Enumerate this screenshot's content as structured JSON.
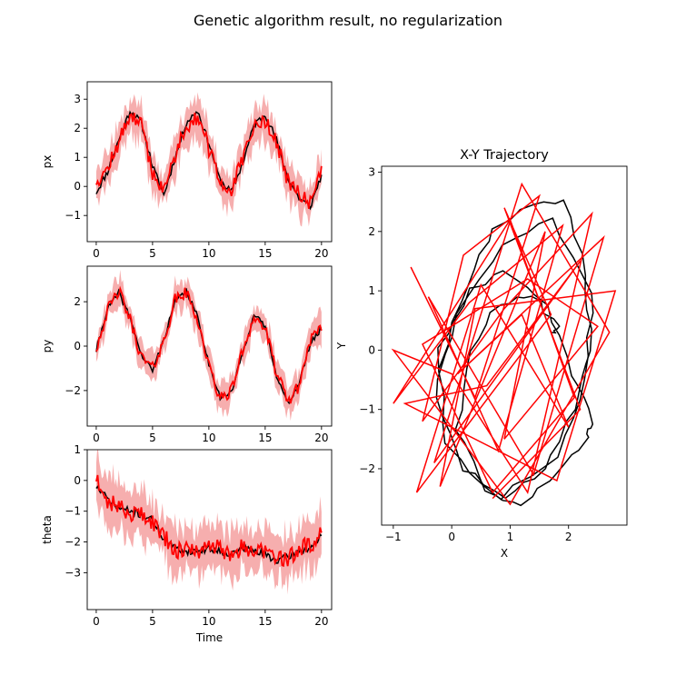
{
  "title": "Genetic algorithm result, no regularization",
  "colors": {
    "truth": "#000000",
    "estimate": "#ff0000",
    "band": "#f4a0a0"
  },
  "chart_data": [
    {
      "id": "px",
      "type": "line",
      "title": "",
      "xlabel": "",
      "ylabel": "px",
      "xlim": [
        -0.8,
        20.9
      ],
      "ylim": [
        -1.9,
        3.6
      ],
      "xticks": [
        0,
        5,
        10,
        15,
        20
      ],
      "yticks": [
        -1,
        0,
        1,
        2,
        3
      ],
      "x": [
        0,
        1,
        2,
        3,
        4,
        5,
        6,
        7,
        8,
        9,
        10,
        11,
        12,
        13,
        14,
        15,
        16,
        17,
        18,
        19,
        20
      ],
      "series": [
        {
          "role": "truth",
          "values": [
            -0.2,
            0.5,
            1.6,
            2.6,
            2.2,
            0.7,
            -0.3,
            1.0,
            2.2,
            2.6,
            1.5,
            0.2,
            -0.2,
            0.8,
            2.1,
            2.5,
            1.6,
            0.3,
            -0.4,
            -0.7,
            0.4
          ]
        },
        {
          "role": "estimate",
          "values": [
            0.2,
            0.6,
            1.5,
            2.5,
            2.1,
            0.5,
            -0.2,
            1.1,
            2.1,
            2.4,
            1.3,
            0.1,
            -0.1,
            0.9,
            2.0,
            2.3,
            1.5,
            0.2,
            -0.3,
            -0.6,
            0.7
          ]
        }
      ],
      "band_halfwidth": 0.6
    },
    {
      "id": "py",
      "type": "line",
      "title": "",
      "xlabel": "",
      "ylabel": "py",
      "xlim": [
        -0.8,
        20.9
      ],
      "ylim": [
        -3.6,
        3.6
      ],
      "xticks": [
        0,
        5,
        10,
        15,
        20
      ],
      "yticks": [
        -2,
        0,
        2
      ],
      "x": [
        0,
        1,
        2,
        3,
        4,
        5,
        6,
        7,
        8,
        9,
        10,
        11,
        12,
        13,
        14,
        15,
        16,
        17,
        18,
        19,
        20
      ],
      "series": [
        {
          "role": "truth",
          "values": [
            -0.2,
            1.7,
            2.4,
            1.3,
            -0.4,
            -1.1,
            0.3,
            2.0,
            2.5,
            1.3,
            -0.8,
            -2.3,
            -2.1,
            -0.3,
            1.4,
            0.9,
            -1.3,
            -2.6,
            -1.7,
            0.1,
            0.8
          ]
        },
        {
          "role": "estimate",
          "values": [
            -0.1,
            1.6,
            2.5,
            1.2,
            -0.5,
            -1.0,
            0.2,
            2.1,
            2.4,
            1.2,
            -0.9,
            -2.4,
            -2.0,
            -0.2,
            1.3,
            0.8,
            -1.2,
            -2.5,
            -1.8,
            0.3,
            0.7
          ]
        }
      ],
      "band_halfwidth": 0.6
    },
    {
      "id": "theta",
      "type": "line",
      "title": "",
      "xlabel": "Time",
      "ylabel": "theta",
      "xlim": [
        -0.8,
        20.9
      ],
      "ylim": [
        -4.2,
        1.0
      ],
      "xticks": [
        0,
        5,
        10,
        15,
        20
      ],
      "yticks": [
        -3,
        -2,
        -1,
        0,
        1
      ],
      "x": [
        0,
        1,
        2,
        3,
        4,
        5,
        6,
        7,
        8,
        9,
        10,
        11,
        12,
        13,
        14,
        15,
        16,
        17,
        18,
        19,
        20
      ],
      "series": [
        {
          "role": "truth",
          "values": [
            -0.2,
            -0.6,
            -0.9,
            -1.0,
            -1.1,
            -1.3,
            -1.9,
            -2.2,
            -2.3,
            -2.3,
            -2.2,
            -2.3,
            -2.4,
            -2.2,
            -2.3,
            -2.4,
            -2.6,
            -2.5,
            -2.3,
            -2.2,
            -1.8
          ]
        },
        {
          "role": "estimate",
          "values": [
            0.1,
            -0.7,
            -0.8,
            -1.1,
            -1.0,
            -1.4,
            -1.8,
            -2.3,
            -2.2,
            -2.4,
            -2.1,
            -2.2,
            -2.5,
            -2.1,
            -2.4,
            -2.3,
            -2.5,
            -2.6,
            -2.2,
            -2.1,
            -1.7
          ]
        }
      ],
      "band_halfwidth": 0.75
    },
    {
      "id": "xy",
      "type": "line",
      "title": "X-Y Trajectory",
      "xlabel": "X",
      "ylabel": "Y",
      "xlim": [
        -1.2,
        3.0
      ],
      "ylim": [
        -2.95,
        3.1
      ],
      "xticks": [
        -1,
        0,
        1,
        2
      ],
      "yticks": [
        -2,
        -1,
        0,
        1,
        2,
        3
      ],
      "series": [
        {
          "role": "truth",
          "x": [
            -0.2,
            0.3,
            0.7,
            1.2,
            1.9,
            2.3,
            2.4,
            2.1,
            1.6,
            0.9,
            0.2,
            -0.3,
            0.1,
            0.9,
            1.7,
            2.4,
            2.3,
            1.8,
            0.8,
            -0.1,
            -0.2,
            0.3,
            0.9,
            1.6,
            2.1,
            2.4,
            2.3,
            1.8,
            1.2,
            0.6,
            0.1,
            0.3,
            0.8,
            1.4,
            1.8,
            1.7
          ],
          "y": [
            -0.3,
            1.2,
            2.0,
            2.4,
            2.5,
            1.3,
            0.0,
            -1.0,
            -2.0,
            -2.5,
            -2.0,
            -0.8,
            0.6,
            1.8,
            2.2,
            1.0,
            -0.5,
            -1.8,
            -2.5,
            -1.6,
            0.0,
            1.0,
            1.3,
            0.8,
            -0.4,
            -1.2,
            -1.5,
            -2.1,
            -2.6,
            -2.4,
            -1.3,
            0.0,
            0.8,
            0.9,
            0.4,
            0.3
          ]
        },
        {
          "role": "estimate",
          "x": [
            -0.7,
            0.4,
            1.5,
            0.2,
            -0.5,
            0.9,
            2.4,
            1.3,
            0.0,
            -1.0,
            1.0,
            2.7,
            1.2,
            -0.3,
            2.2,
            0.6,
            -0.8,
            1.8,
            2.8,
            0.4,
            -0.2,
            1.6,
            0.9,
            2.5,
            1.3,
            -0.5,
            0.7,
            2.1,
            1.0,
            -1.0,
            0.3,
            1.9,
            0.8,
            -0.4,
            1.4,
            2.6,
            0.1,
            1.2,
            2.0,
            0.5,
            -0.6,
            1.7,
            0.9,
            2.2,
            0.7
          ],
          "y": [
            1.4,
            -0.8,
            2.6,
            1.6,
            -1.2,
            0.7,
            2.3,
            -2.4,
            -0.4,
            0.0,
            -2.6,
            0.3,
            2.8,
            -1.9,
            1.5,
            -0.6,
            -0.9,
            -2.2,
            1.0,
            0.7,
            -2.3,
            2.0,
            -1.5,
            0.4,
            1.2,
            0.1,
            -2.4,
            -0.8,
            2.2,
            -0.9,
            0.8,
            2.1,
            -1.7,
            0.9,
            -2.1,
            1.9,
            -0.4,
            0.6,
            -1.3,
            1.1,
            -2.4,
            0.6,
            2.4,
            -1.0,
            -2.5
          ]
        }
      ]
    }
  ]
}
